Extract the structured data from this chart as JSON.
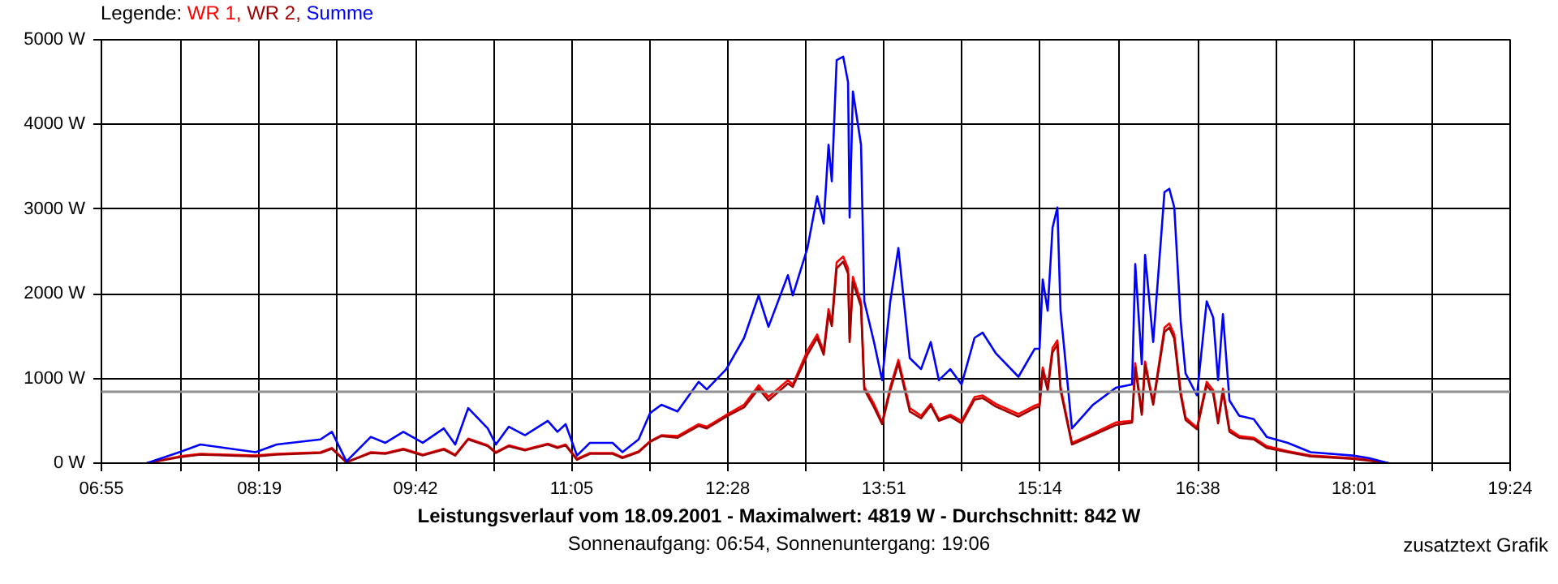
{
  "chart_data": {
    "type": "line",
    "title": "Leistungsverlauf vom 18.09.2001 - Maximalwert: 4819 W - Durchschnitt: 842 W",
    "subtitle": "Sonnenaufgang: 06:54, Sonnenuntergang: 19:06",
    "annotations": [
      "zusatztext Grafik"
    ],
    "legend_title": "Legende:",
    "legend": "top left",
    "grid": true,
    "x": [
      7.319,
      7.607,
      7.794,
      8.283,
      8.47,
      8.858,
      8.959,
      9.088,
      9.304,
      9.433,
      9.592,
      9.764,
      9.951,
      10.052,
      10.167,
      10.34,
      10.412,
      10.527,
      10.67,
      10.872,
      10.958,
      11.03,
      11.131,
      11.246,
      11.447,
      11.533,
      11.677,
      11.778,
      11.879,
      12.022,
      12.209,
      12.281,
      12.454,
      12.612,
      12.741,
      12.828,
      13.0,
      13.043,
      13.173,
      13.259,
      13.317,
      13.36,
      13.389,
      13.432,
      13.49,
      13.533,
      13.547,
      13.576,
      13.648,
      13.677,
      13.763,
      13.835,
      13.907,
      13.979,
      14.08,
      14.18,
      14.266,
      14.338,
      14.439,
      14.539,
      14.654,
      14.726,
      14.841,
      15.043,
      15.187,
      15.23,
      15.258,
      15.302,
      15.345,
      15.388,
      15.416,
      15.517,
      15.704,
      15.906,
      16.05,
      16.078,
      16.136,
      16.165,
      16.237,
      16.337,
      16.38,
      16.424,
      16.481,
      16.524,
      16.625,
      16.711,
      16.769,
      16.812,
      16.855,
      16.913,
      16.999,
      17.128,
      17.243,
      17.43,
      17.632,
      18.005,
      18.149,
      18.322
    ],
    "series": [
      {
        "name": "WR 1,",
        "color": "#ff0000",
        "values": [
          0,
          80,
          110,
          90,
          110,
          130,
          180,
          10,
          130,
          120,
          170,
          100,
          170,
          100,
          290,
          210,
          130,
          210,
          160,
          230,
          190,
          220,
          50,
          120,
          120,
          70,
          140,
          260,
          330,
          320,
          460,
          430,
          570,
          690,
          920,
          780,
          980,
          930,
          1330,
          1520,
          1320,
          1820,
          1660,
          2370,
          2440,
          2300,
          1470,
          2200,
          1900,
          900,
          700,
          480,
          900,
          1220,
          650,
          560,
          700,
          520,
          570,
          500,
          780,
          800,
          700,
          580,
          680,
          700,
          1130,
          900,
          1360,
          1450,
          900,
          240,
          350,
          480,
          500,
          1180,
          600,
          1200,
          720,
          1600,
          1650,
          1520,
          840,
          540,
          420,
          960,
          860,
          500,
          880,
          400,
          320,
          300,
          200,
          140,
          90,
          60,
          40,
          0
        ]
      },
      {
        "name": "WR 2,",
        "color": "#a00000",
        "values": [
          0,
          70,
          100,
          80,
          100,
          120,
          170,
          10,
          120,
          110,
          160,
          90,
          160,
          90,
          280,
          200,
          120,
          200,
          150,
          220,
          180,
          210,
          40,
          110,
          110,
          60,
          130,
          250,
          320,
          300,
          440,
          410,
          550,
          660,
          880,
          740,
          940,
          900,
          1280,
          1480,
          1280,
          1760,
          1620,
          2300,
          2380,
          2240,
          1430,
          2140,
          1850,
          870,
          660,
          460,
          860,
          1180,
          610,
          530,
          680,
          500,
          550,
          470,
          750,
          770,
          670,
          550,
          650,
          670,
          1090,
          860,
          1310,
          1400,
          860,
          220,
          330,
          450,
          480,
          1130,
          570,
          1160,
          690,
          1550,
          1600,
          1470,
          800,
          510,
          400,
          920,
          820,
          470,
          840,
          370,
          300,
          280,
          180,
          130,
          80,
          50,
          30,
          0
        ]
      },
      {
        "name": "Summe",
        "color": "#0000ff",
        "values": [
          0,
          130,
          220,
          130,
          220,
          280,
          370,
          20,
          310,
          240,
          370,
          240,
          410,
          220,
          650,
          410,
          220,
          430,
          330,
          500,
          370,
          460,
          90,
          240,
          240,
          130,
          280,
          590,
          690,
          610,
          960,
          870,
          1110,
          1480,
          1980,
          1610,
          2220,
          1980,
          2540,
          3150,
          2830,
          3760,
          3330,
          4760,
          4800,
          4500,
          2900,
          4390,
          3760,
          1910,
          1430,
          980,
          1910,
          2540,
          1240,
          1110,
          1430,
          980,
          1110,
          930,
          1480,
          1540,
          1300,
          1020,
          1350,
          1350,
          2170,
          1800,
          2780,
          3020,
          1800,
          410,
          690,
          890,
          930,
          2350,
          1170,
          2460,
          1430,
          3200,
          3240,
          3020,
          1670,
          1060,
          800,
          1910,
          1720,
          980,
          1760,
          740,
          560,
          520,
          310,
          240,
          130,
          90,
          60,
          0
        ]
      }
    ],
    "xlim": [
      6.9167,
      19.4
    ],
    "xticks": [
      {
        "value": 6.9167,
        "label": "06:55"
      },
      {
        "value": 7.6167,
        "label": null
      },
      {
        "value": 8.3167,
        "label": "08:19"
      },
      {
        "value": 9.0083,
        "label": null
      },
      {
        "value": 9.7,
        "label": "09:42"
      },
      {
        "value": 10.3917,
        "label": null
      },
      {
        "value": 11.0833,
        "label": "11:05"
      },
      {
        "value": 11.775,
        "label": null
      },
      {
        "value": 12.4667,
        "label": "12:28"
      },
      {
        "value": 13.1583,
        "label": null
      },
      {
        "value": 13.85,
        "label": "13:51"
      },
      {
        "value": 14.5417,
        "label": null
      },
      {
        "value": 15.2333,
        "label": "15:14"
      },
      {
        "value": 15.9333,
        "label": null
      },
      {
        "value": 16.6333,
        "label": "16:38"
      },
      {
        "value": 17.325,
        "label": null
      },
      {
        "value": 18.0167,
        "label": "18:01"
      },
      {
        "value": 18.7083,
        "label": null
      },
      {
        "value": 19.4,
        "label": "19:24"
      }
    ],
    "ylim": [
      0,
      5000
    ],
    "yticks": [
      {
        "value": 0,
        "label": "0 W"
      },
      {
        "value": 1000,
        "label": "1000 W"
      },
      {
        "value": 2000,
        "label": "2000 W"
      },
      {
        "value": 3000,
        "label": "3000 W"
      },
      {
        "value": 4000,
        "label": "4000 W"
      },
      {
        "value": 5000,
        "label": "5000 W"
      }
    ],
    "ref_lines": [
      {
        "axis": "y",
        "value": 842,
        "color": "#909090"
      }
    ]
  }
}
